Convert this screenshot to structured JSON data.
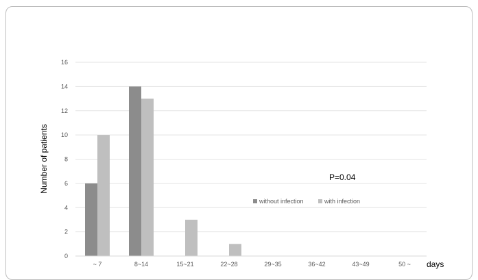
{
  "chart_data": {
    "type": "bar",
    "categories": [
      "~ 7",
      "8~14",
      "15~21",
      "22~28",
      "29~35",
      "36~42",
      "43~49",
      "50 ~"
    ],
    "series": [
      {
        "name": "without infection",
        "values": [
          6,
          14,
          0,
          0,
          0,
          0,
          0,
          0
        ],
        "color": "#8c8c8c"
      },
      {
        "name": "with infection",
        "values": [
          10,
          13,
          3,
          1,
          0,
          0,
          0,
          0
        ],
        "color": "#bfbfbf"
      }
    ],
    "xlabel": "days",
    "ylabel": "Number of patients",
    "ylim": [
      0,
      16
    ],
    "yticks": [
      0,
      2,
      4,
      6,
      8,
      10,
      12,
      14,
      16
    ],
    "grid": true,
    "legend_position": "right",
    "annotation": "P=0.04"
  }
}
